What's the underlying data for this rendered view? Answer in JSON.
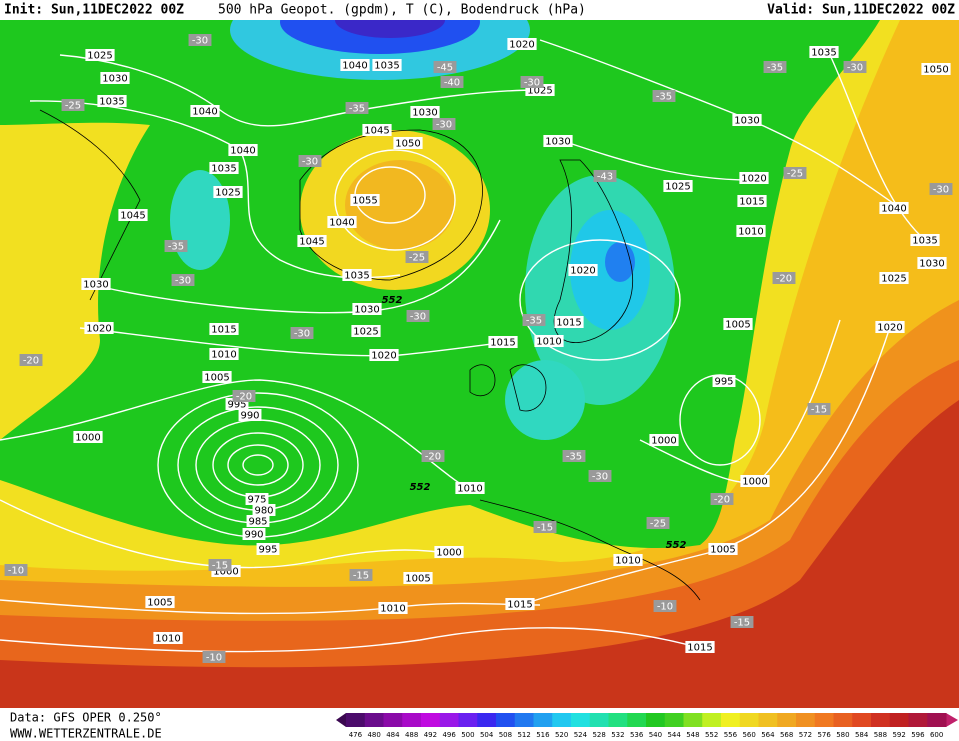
{
  "header": {
    "init": "Init: Sun,11DEC2022 00Z",
    "title": "500 hPa Geopot. (gpdm), T (C), Bodendruck (hPa)",
    "valid": "Valid: Sun,11DEC2022 00Z"
  },
  "footer": {
    "source": "Data: GFS OPER 0.250°",
    "site": "WWW.WETTERZENTRALE.DE"
  },
  "map": {
    "isobar_labels": [
      "1025",
      "1030",
      "1035",
      "1040",
      "1040",
      "1035",
      "1025",
      "1045",
      "1030",
      "1020",
      "1015",
      "1010",
      "1005",
      "995",
      "990",
      "1000",
      "975",
      "980",
      "985",
      "990",
      "995",
      "1000",
      "1005",
      "1010",
      "1000",
      "1005",
      "1010",
      "1015",
      "1010",
      "1005",
      "1015",
      "1000",
      "1000",
      "995",
      "1005",
      "1010",
      "1015",
      "1020",
      "1025",
      "1030",
      "1035",
      "1050",
      "1040",
      "1035",
      "1030",
      "1025",
      "1020",
      "1020",
      "1015",
      "1010",
      "1015",
      "1020",
      "1025",
      "1030",
      "1035",
      "1040",
      "1045",
      "1055",
      "1050",
      "1045",
      "1030",
      "1040",
      "1035",
      "1020",
      "1025",
      "1030",
      "1010"
    ],
    "geopotential_labels": [
      "552",
      "552",
      "552"
    ],
    "temperature_labels": [
      "-30",
      "-25",
      "-35",
      "-30",
      "-45",
      "-40",
      "-30",
      "-35",
      "-35",
      "-30",
      "-30",
      "-43",
      "-25",
      "-30",
      "-35",
      "-30",
      "-25",
      "-30",
      "-30",
      "-35",
      "-20",
      "-20",
      "-20",
      "-35",
      "-30",
      "-15",
      "-20",
      "-25",
      "-15",
      "-10",
      "-15",
      "-15",
      "-10",
      "-15",
      "-10",
      "-20"
    ]
  },
  "colorbar": {
    "ticks": [
      476,
      480,
      484,
      488,
      492,
      496,
      500,
      504,
      508,
      512,
      516,
      520,
      524,
      528,
      532,
      536,
      540,
      544,
      548,
      552,
      556,
      560,
      564,
      568,
      572,
      576,
      580,
      584,
      588,
      592,
      596,
      600
    ],
    "colors": [
      "#4b0b6b",
      "#6a0c8c",
      "#8a0aa8",
      "#a80ac8",
      "#c00ae0",
      "#9a18e8",
      "#6a20f0",
      "#3a28f0",
      "#2050f0",
      "#2078f0",
      "#20a0f0",
      "#20c8f0",
      "#20e0e0",
      "#20e0b0",
      "#20e080",
      "#20d850",
      "#20c820",
      "#40d020",
      "#80e020",
      "#c0f020",
      "#f0f020",
      "#f0d820",
      "#f0c020",
      "#f0a820",
      "#f09020",
      "#f07820",
      "#e86020",
      "#e04820",
      "#d03020",
      "#c02020",
      "#b01838",
      "#a01050"
    ]
  }
}
